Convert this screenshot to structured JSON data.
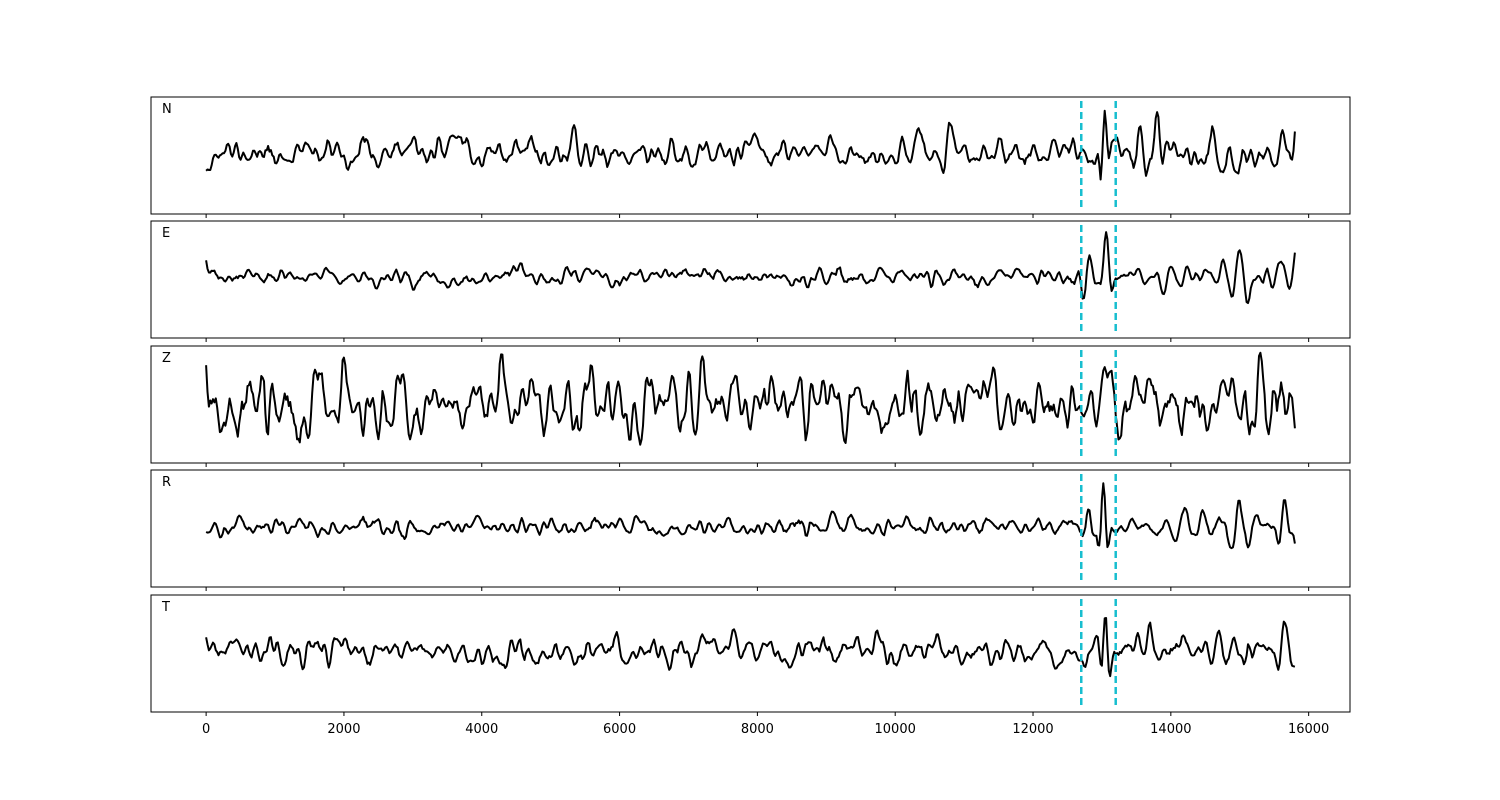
{
  "chart_data": {
    "type": "line",
    "title": "",
    "xlabel": "",
    "ylabel": "",
    "xlim": [
      -800,
      16600
    ],
    "x_ticks": [
      0,
      2000,
      4000,
      6000,
      8000,
      10000,
      12000,
      14000,
      16000
    ],
    "x_tick_labels": [
      "0",
      "2000",
      "4000",
      "6000",
      "8000",
      "10000",
      "12000",
      "14000",
      "16000"
    ],
    "sample_range": [
      0,
      15800
    ],
    "sample_step": 20,
    "grid": false,
    "legend": "none",
    "pick_lines": [
      12700,
      13200
    ],
    "line_color": "#000000",
    "pick_color": "#17BECF",
    "series": [
      {
        "name": "N",
        "noise_std": 0.14,
        "seed": 11,
        "wavelets": [
          {
            "t": 12950,
            "amp": 0.25,
            "width": 40,
            "period": 110
          },
          {
            "t": 13040,
            "amp": 0.85,
            "width": 60,
            "period": 150
          },
          {
            "t": 13550,
            "amp": 0.45,
            "width": 120,
            "period": 180
          },
          {
            "t": 13800,
            "amp": 0.7,
            "width": 80,
            "period": 200
          },
          {
            "t": 14600,
            "amp": 0.35,
            "width": 200,
            "period": 260
          },
          {
            "t": 15600,
            "amp": 0.55,
            "width": 100,
            "period": 240
          }
        ]
      },
      {
        "name": "E",
        "noise_std": 0.08,
        "seed": 23,
        "wavelets": [
          {
            "t": 12820,
            "amp": 0.5,
            "width": 80,
            "period": 200
          },
          {
            "t": 13060,
            "amp": 0.8,
            "width": 70,
            "period": 180
          },
          {
            "t": 14000,
            "amp": 0.3,
            "width": 220,
            "period": 260
          },
          {
            "t": 15000,
            "amp": 0.55,
            "width": 200,
            "period": 240
          },
          {
            "t": 15600,
            "amp": 0.35,
            "width": 150,
            "period": 240
          }
        ]
      },
      {
        "name": "Z",
        "noise_std": 0.3,
        "seed": 37,
        "wavelets": [
          {
            "t": 1560,
            "amp": 0.45,
            "width": 60,
            "period": 180
          },
          {
            "t": 6400,
            "amp": 0.5,
            "width": 200,
            "period": 230
          },
          {
            "t": 7000,
            "amp": 0.4,
            "width": 150,
            "period": 220
          },
          {
            "t": 13300,
            "amp": 0.3,
            "width": 120,
            "period": 200
          },
          {
            "t": 15300,
            "amp": 0.6,
            "width": 100,
            "period": 200
          }
        ]
      },
      {
        "name": "R",
        "noise_std": 0.09,
        "seed": 41,
        "wavelets": [
          {
            "t": 12810,
            "amp": 0.3,
            "width": 60,
            "period": 160
          },
          {
            "t": 13020,
            "amp": 0.95,
            "width": 55,
            "period": 160
          },
          {
            "t": 14200,
            "amp": 0.3,
            "width": 250,
            "period": 280
          },
          {
            "t": 15000,
            "amp": 0.45,
            "width": 220,
            "period": 260
          },
          {
            "t": 15650,
            "amp": 0.3,
            "width": 120,
            "period": 240
          }
        ]
      },
      {
        "name": "T",
        "noise_std": 0.13,
        "seed": 53,
        "wavelets": [
          {
            "t": 13050,
            "amp": 0.9,
            "width": 55,
            "period": 150
          },
          {
            "t": 13700,
            "amp": 0.6,
            "width": 80,
            "period": 190
          },
          {
            "t": 14700,
            "amp": 0.4,
            "width": 220,
            "period": 250
          },
          {
            "t": 15650,
            "amp": 0.45,
            "width": 100,
            "period": 220
          }
        ]
      }
    ]
  }
}
